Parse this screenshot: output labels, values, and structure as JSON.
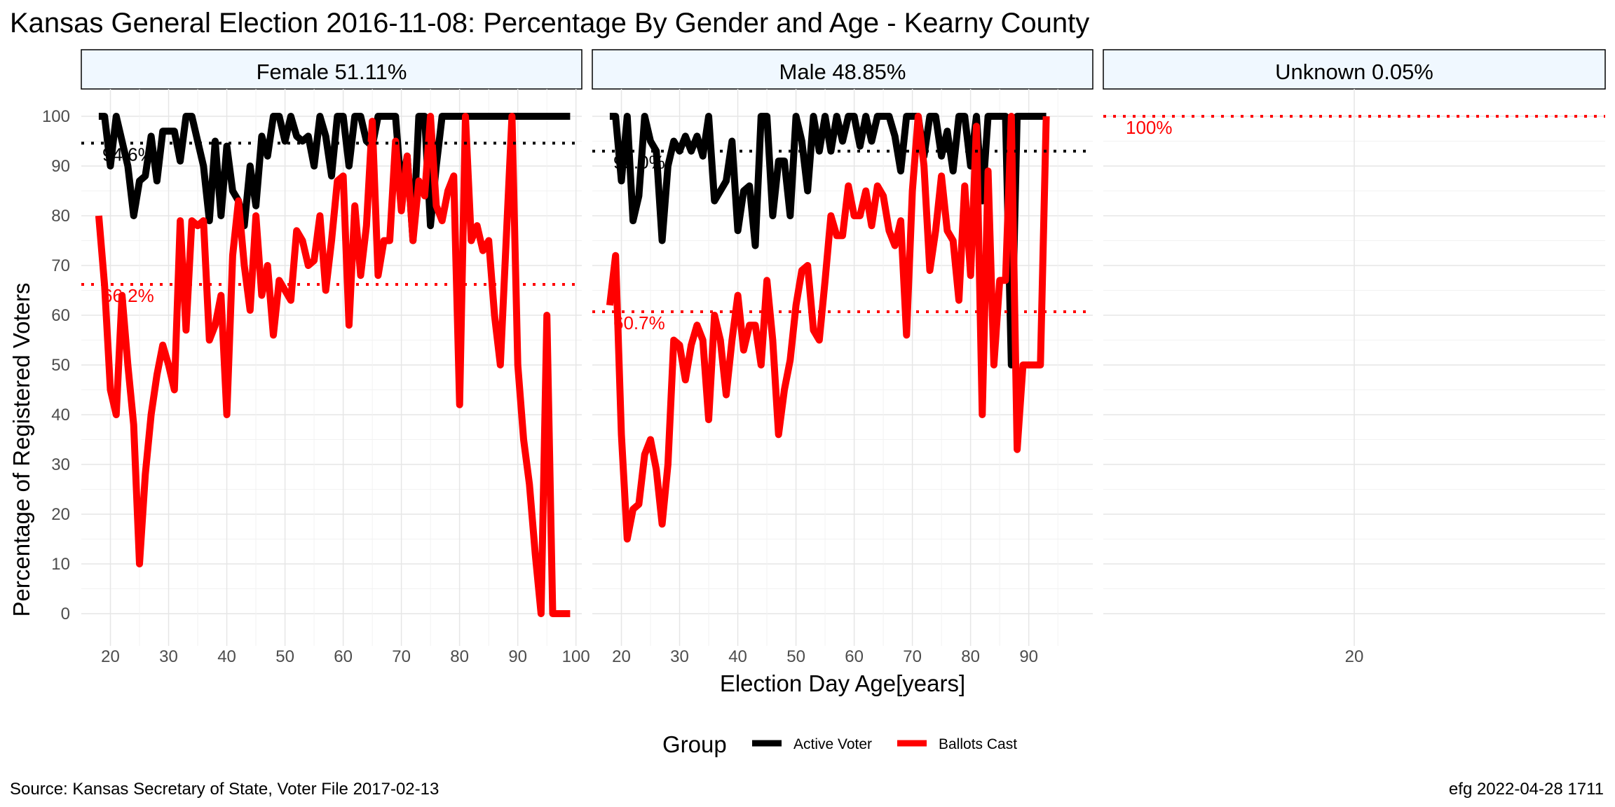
{
  "page": {
    "title": "Kansas General Election 2016-11-08:  Percentage By Gender and Age - Kearny County",
    "source": "Source:  Kansas Secretary of State, Voter File  2017-02-13",
    "credit": "efg 2022-04-28 1711"
  },
  "chart_data": {
    "type": "line",
    "title": "Kansas General Election 2016-11-08:  Percentage By Gender and Age - Kearny County",
    "xlabel": "Election Day Age[years]",
    "ylabel": "Percentage of Registered Voters",
    "ylim": [
      0,
      100
    ],
    "y_ticks": [
      "0",
      "10",
      "20",
      "30",
      "40",
      "50",
      "60",
      "70",
      "80",
      "90",
      "100"
    ],
    "grid": true,
    "legend": {
      "title": "Group",
      "position": "bottom",
      "entries": [
        {
          "name": "Active Voter",
          "color": "#000000"
        },
        {
          "name": "Ballots Cast",
          "color": "#ff0000"
        }
      ]
    },
    "panels": [
      {
        "label": "Female 51.11%",
        "xlim": [
          15,
          101
        ],
        "x_ticks": [
          "20",
          "30",
          "40",
          "50",
          "60",
          "70",
          "80",
          "90",
          "100"
        ],
        "reference_lines": [
          {
            "series": "Active Voter",
            "value": 94.6,
            "label": "94.6%"
          },
          {
            "series": "Ballots Cast",
            "value": 66.2,
            "label": "66.2%"
          }
        ],
        "series": [
          {
            "name": "Active Voter",
            "x": [
              18,
              19,
              20,
              21,
              22,
              23,
              24,
              25,
              26,
              27,
              28,
              29,
              30,
              31,
              32,
              33,
              34,
              35,
              36,
              37,
              38,
              39,
              40,
              41,
              42,
              43,
              44,
              45,
              46,
              47,
              48,
              49,
              50,
              51,
              52,
              53,
              54,
              55,
              56,
              57,
              58,
              59,
              60,
              61,
              62,
              63,
              64,
              65,
              66,
              67,
              68,
              69,
              70,
              71,
              72,
              73,
              74,
              75,
              76,
              77,
              78,
              79,
              80,
              81,
              82,
              83,
              84,
              85,
              86,
              87,
              88,
              89,
              90,
              91,
              92,
              93,
              94,
              95,
              96,
              97,
              98,
              99
            ],
            "values": [
              100,
              100,
              90,
              100,
              95,
              90,
              80,
              87,
              88,
              96,
              87,
              97,
              97,
              97,
              91,
              100,
              100,
              95,
              90,
              79,
              95,
              80,
              94,
              85,
              83,
              78,
              90,
              82,
              96,
              92,
              100,
              100,
              95,
              100,
              96,
              95,
              96,
              90,
              100,
              96,
              88,
              100,
              100,
              90,
              100,
              100,
              95,
              94,
              100,
              100,
              100,
              100,
              85,
              92,
              75,
              100,
              100,
              78,
              90,
              100,
              100,
              100,
              100,
              100,
              100,
              100,
              100,
              100,
              100,
              100,
              100,
              100,
              100,
              100,
              100,
              100,
              100,
              100,
              100,
              100,
              100,
              100
            ]
          },
          {
            "name": "Ballots Cast",
            "x": [
              18,
              19,
              20,
              21,
              22,
              23,
              24,
              25,
              26,
              27,
              28,
              29,
              30,
              31,
              32,
              33,
              34,
              35,
              36,
              37,
              38,
              39,
              40,
              41,
              42,
              43,
              44,
              45,
              46,
              47,
              48,
              49,
              50,
              51,
              52,
              53,
              54,
              55,
              56,
              57,
              58,
              59,
              60,
              61,
              62,
              63,
              64,
              65,
              66,
              67,
              68,
              69,
              70,
              71,
              72,
              73,
              74,
              75,
              76,
              77,
              78,
              79,
              80,
              81,
              82,
              83,
              84,
              85,
              86,
              87,
              88,
              89,
              90,
              91,
              92,
              93,
              94,
              95,
              96,
              97,
              98,
              99
            ],
            "values": [
              80,
              66,
              45,
              40,
              64,
              50,
              38,
              10,
              28,
              40,
              48,
              54,
              50,
              45,
              79,
              57,
              79,
              78,
              79,
              55,
              58,
              64,
              40,
              72,
              83,
              70,
              61,
              80,
              64,
              70,
              56,
              67,
              65,
              63,
              77,
              75,
              70,
              71,
              80,
              65,
              75,
              87,
              88,
              58,
              82,
              68,
              78,
              99,
              68,
              75,
              75,
              95,
              81,
              92,
              75,
              87,
              84,
              100,
              82,
              79,
              85,
              88,
              42,
              100,
              75,
              78,
              73,
              75,
              60,
              50,
              75,
              100,
              50,
              35,
              26,
              12,
              0,
              60,
              0,
              0,
              0,
              0
            ]
          }
        ]
      },
      {
        "label": "Male 48.85%",
        "xlim": [
          15,
          101
        ],
        "x_ticks": [
          "20",
          "30",
          "40",
          "50",
          "60",
          "70",
          "80",
          "90"
        ],
        "reference_lines": [
          {
            "series": "Active Voter",
            "value": 93.0,
            "label": "93.0%"
          },
          {
            "series": "Ballots Cast",
            "value": 60.7,
            "label": "60.7%"
          }
        ],
        "series": [
          {
            "name": "Active Voter",
            "x": [
              18,
              19,
              20,
              21,
              22,
              23,
              24,
              25,
              26,
              27,
              28,
              29,
              30,
              31,
              32,
              33,
              34,
              35,
              36,
              37,
              38,
              39,
              40,
              41,
              42,
              43,
              44,
              45,
              46,
              47,
              48,
              49,
              50,
              51,
              52,
              53,
              54,
              55,
              56,
              57,
              58,
              59,
              60,
              61,
              62,
              63,
              64,
              65,
              66,
              67,
              68,
              69,
              70,
              71,
              72,
              73,
              74,
              75,
              76,
              77,
              78,
              79,
              80,
              81,
              82,
              83,
              84,
              85,
              86,
              87,
              88,
              89,
              90,
              91,
              92,
              93
            ],
            "values": [
              100,
              100,
              87,
              100,
              79,
              84,
              100,
              95,
              93,
              75,
              90,
              95,
              93,
              96,
              93,
              96,
              92,
              100,
              83,
              85,
              87,
              95,
              77,
              85,
              86,
              74,
              100,
              100,
              80,
              91,
              91,
              80,
              100,
              95,
              85,
              100,
              93,
              100,
              93,
              100,
              95,
              100,
              100,
              94,
              100,
              95,
              100,
              100,
              100,
              96,
              89,
              100,
              100,
              100,
              92,
              100,
              100,
              92,
              97,
              89,
              100,
              100,
              90,
              100,
              83,
              100,
              100,
              100,
              100,
              50,
              100,
              100,
              100,
              100,
              100,
              100
            ]
          },
          {
            "name": "Ballots Cast",
            "x": [
              18,
              19,
              20,
              21,
              22,
              23,
              24,
              25,
              26,
              27,
              28,
              29,
              30,
              31,
              32,
              33,
              34,
              35,
              36,
              37,
              38,
              39,
              40,
              41,
              42,
              43,
              44,
              45,
              46,
              47,
              48,
              49,
              50,
              51,
              52,
              53,
              54,
              55,
              56,
              57,
              58,
              59,
              60,
              61,
              62,
              63,
              64,
              65,
              66,
              67,
              68,
              69,
              70,
              71,
              72,
              73,
              74,
              75,
              76,
              77,
              78,
              79,
              80,
              81,
              82,
              83,
              84,
              85,
              86,
              87,
              88,
              89,
              90,
              91,
              92,
              93
            ],
            "values": [
              62,
              72,
              36,
              15,
              21,
              22,
              32,
              35,
              29,
              18,
              30,
              55,
              54,
              47,
              54,
              58,
              55,
              39,
              60,
              55,
              44,
              55,
              64,
              53,
              58,
              58,
              50,
              67,
              55,
              36,
              45,
              51,
              62,
              69,
              70,
              57,
              55,
              67,
              80,
              76,
              76,
              86,
              80,
              80,
              85,
              78,
              86,
              84,
              77,
              74,
              79,
              56,
              85,
              100,
              90,
              69,
              77,
              88,
              77,
              75,
              63,
              86,
              68,
              98,
              40,
              89,
              50,
              67,
              67,
              100,
              33,
              50,
              50,
              50,
              50,
              100
            ]
          }
        ]
      },
      {
        "label": "Unknown 0.05%",
        "xlim": [
          15,
          25
        ],
        "x_ticks": [
          "20"
        ],
        "reference_lines": [
          {
            "series": "Ballots Cast",
            "value": 100,
            "label": "100%"
          }
        ],
        "series": []
      }
    ]
  }
}
